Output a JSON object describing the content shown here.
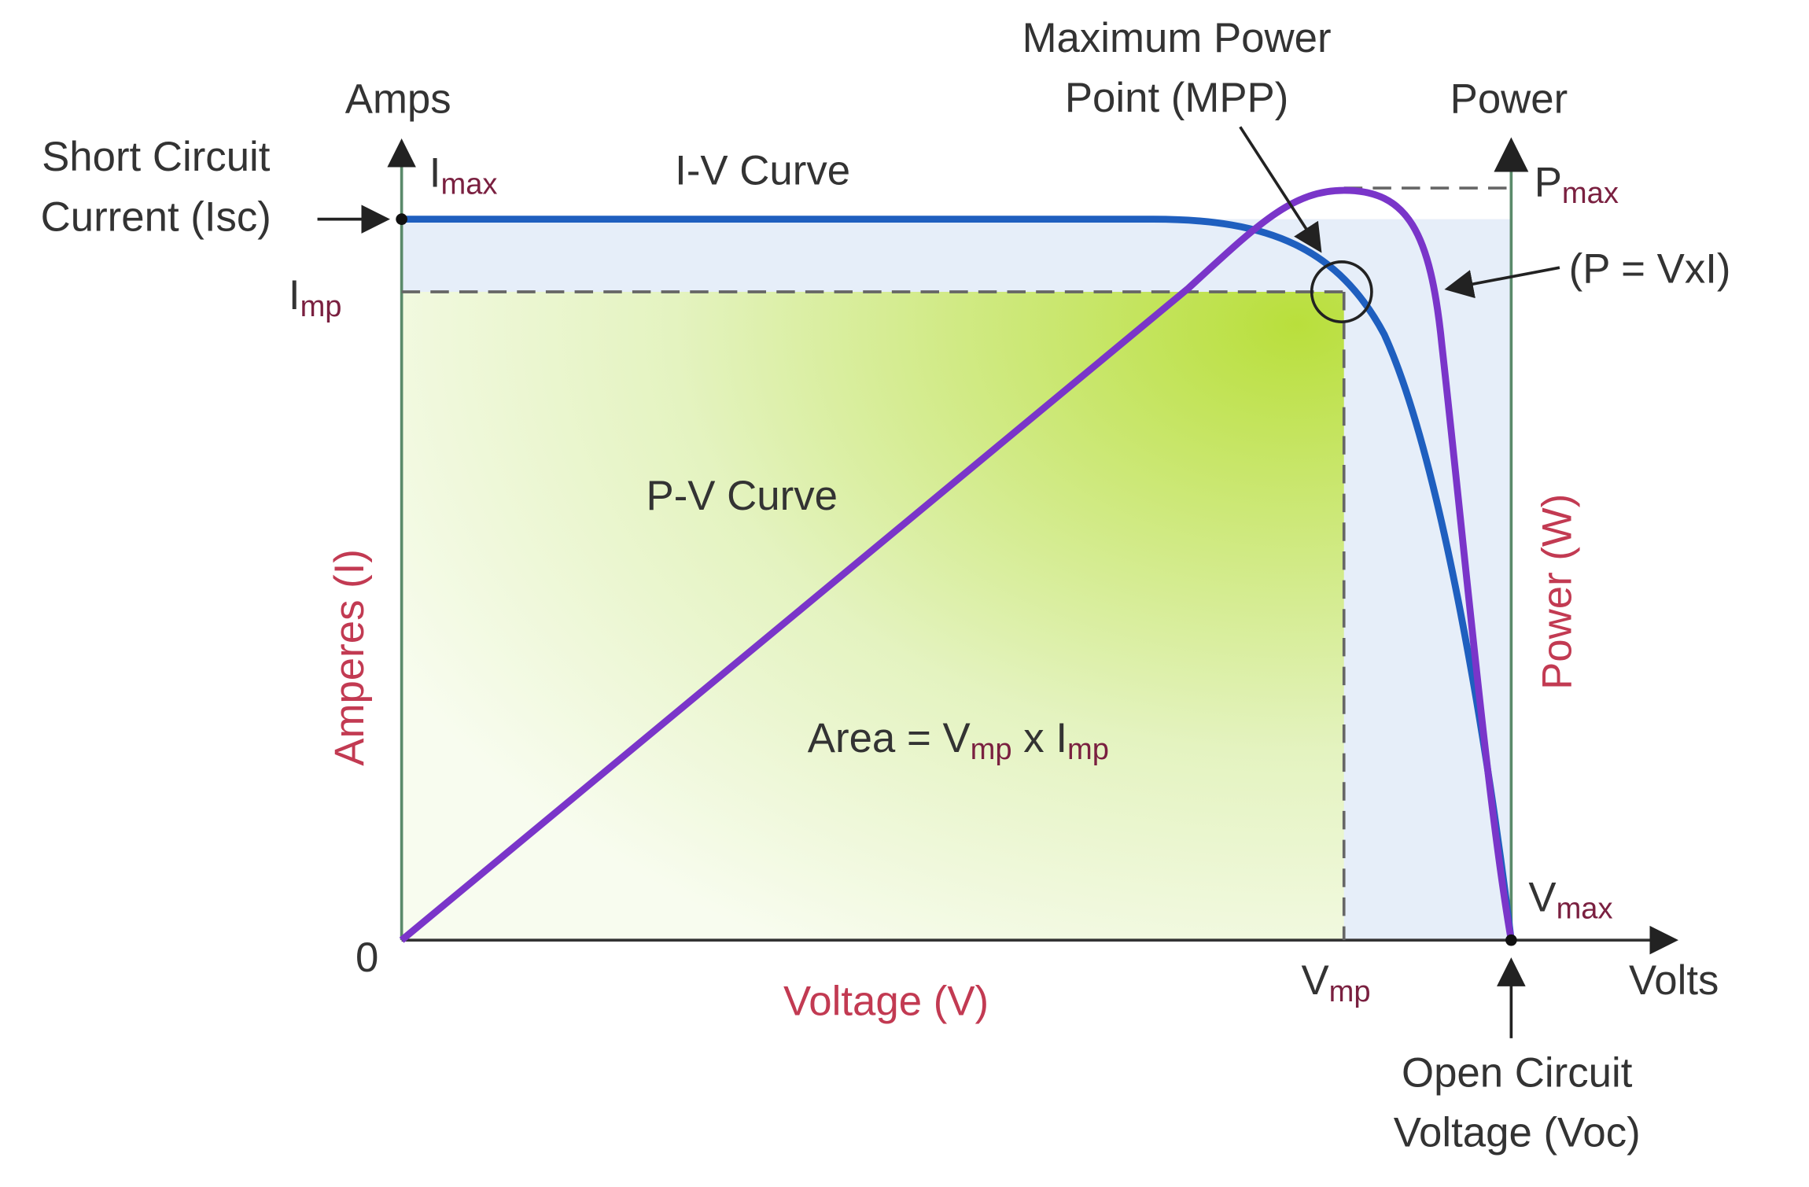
{
  "labels": {
    "amps": "Amps",
    "short_circuit": [
      "Short Circuit",
      "Current (Isc)"
    ],
    "i_max": {
      "main": "I",
      "sub": "max"
    },
    "iv_curve": "I-V Curve",
    "mpp": [
      "Maximum Power",
      "Point (MPP)"
    ],
    "power": "Power",
    "p_max": {
      "main": "P",
      "sub": "max"
    },
    "formula": "(P = VxI)",
    "i_mp": {
      "main": "I",
      "sub": "mp"
    },
    "pv_curve": "P-V Curve",
    "amperes_axis": "Amperes (I)",
    "power_axis": "Power (W)",
    "area": [
      "Area = V",
      "mp",
      " x I",
      "mp"
    ],
    "v_max": {
      "main": "V",
      "sub": "max"
    },
    "zero": "0",
    "voltage_axis": "Voltage (V)",
    "v_mp": {
      "main": "V",
      "sub": "mp"
    },
    "volts": "Volts",
    "open_circuit": [
      "Open Circuit",
      "Voltage (Voc)"
    ]
  }
}
